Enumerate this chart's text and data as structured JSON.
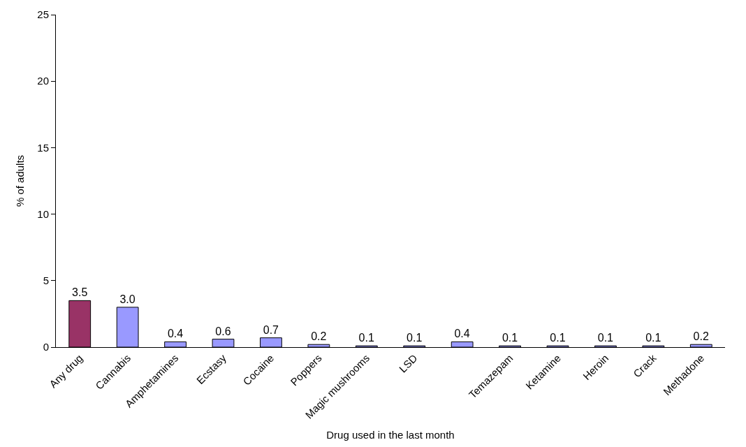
{
  "chart_data": {
    "type": "bar",
    "xlabel": "Drug used in the last month",
    "ylabel": "% of adults",
    "categories": [
      "Any drug",
      "Cannabis",
      "Amphetamines",
      "Ecstasy",
      "Cocaine",
      "Poppers",
      "Magic mushrooms",
      "LSD",
      null,
      "Temazepam",
      "Ketamine",
      "Heroin",
      "Crack",
      "Methadone"
    ],
    "values": [
      3.5,
      3.0,
      0.4,
      0.6,
      0.7,
      0.2,
      0.1,
      0.1,
      0.4,
      0.1,
      0.1,
      0.1,
      0.1,
      0.2
    ],
    "value_labels": [
      "3.5",
      "3.0",
      "0.4",
      "0.6",
      "0.7",
      "0.2",
      "0.1",
      "0.1",
      "0.4",
      "0.1",
      "0.1",
      "0.1",
      "0.1",
      "0.2"
    ],
    "colors": [
      "#993366",
      "#9999ff",
      "#9999ff",
      "#9999ff",
      "#9999ff",
      "#9999ff",
      "#9999ff",
      "#9999ff",
      "#9999ff",
      "#9999ff",
      "#9999ff",
      "#9999ff",
      "#9999ff",
      "#9999ff"
    ],
    "ylim": [
      0,
      25
    ],
    "yticks": [
      0,
      5,
      10,
      15,
      20,
      25
    ]
  }
}
